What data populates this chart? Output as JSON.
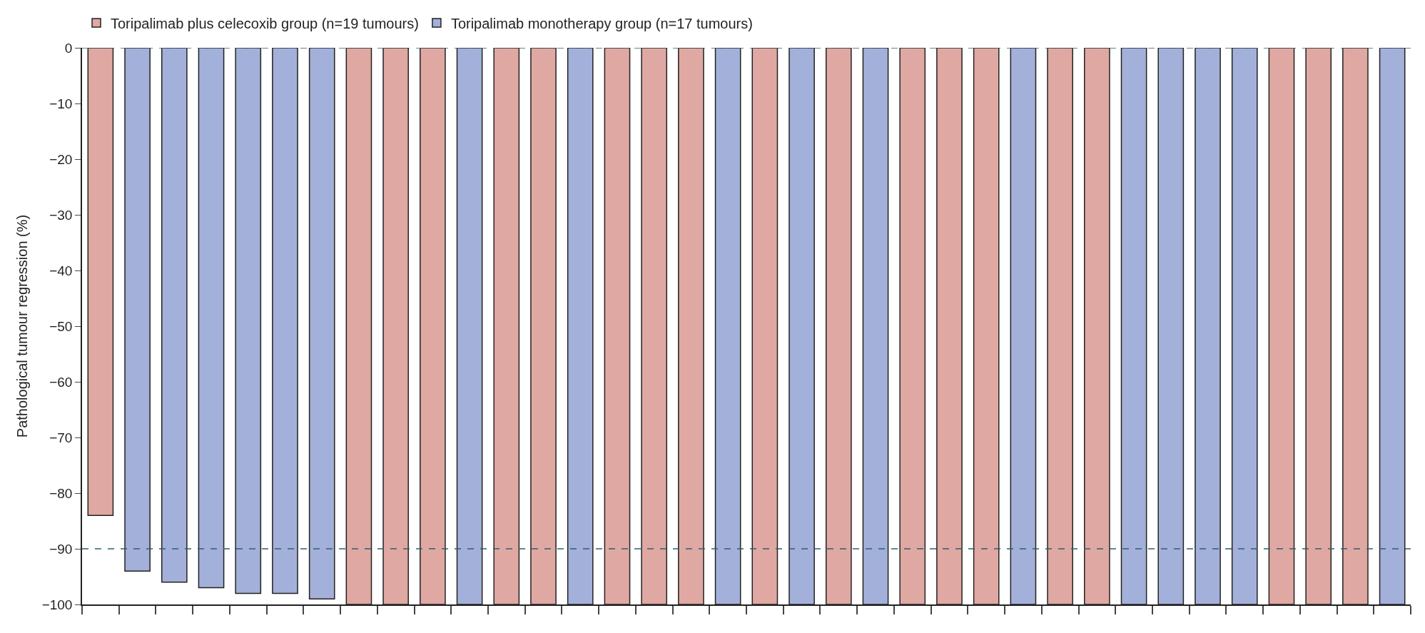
{
  "chart_data": {
    "type": "bar",
    "ylabel": "Pathological tumour regression (%)",
    "categories": [
      null,
      null,
      null,
      null,
      null,
      null,
      null,
      null,
      null,
      null,
      null,
      null,
      null,
      null,
      null,
      null,
      null,
      null,
      null,
      null,
      null,
      null,
      null,
      null,
      null,
      null,
      null,
      null,
      null,
      null,
      null,
      null,
      null,
      null,
      null,
      null
    ],
    "series": [
      {
        "name": "Toripalimab plus celecoxib group (n=19 tumours)",
        "color": "#e0a8a2",
        "values": [
          -84,
          null,
          null,
          null,
          null,
          null,
          null,
          -100,
          -100,
          -100,
          null,
          -100,
          -100,
          null,
          -100,
          -100,
          -100,
          null,
          -100,
          null,
          -100,
          null,
          -100,
          -100,
          -100,
          null,
          -100,
          -100,
          null,
          null,
          null,
          null,
          -100,
          -100,
          -100,
          null
        ]
      },
      {
        "name": "Toripalimab monotherapy group (n=17 tumours)",
        "color": "#a3b0d9",
        "values": [
          null,
          -94,
          -96,
          -97,
          -98,
          -98,
          -99,
          null,
          null,
          null,
          -100,
          null,
          null,
          -100,
          null,
          null,
          null,
          -100,
          null,
          -100,
          null,
          -100,
          null,
          null,
          null,
          -100,
          null,
          null,
          -100,
          -100,
          -100,
          -100,
          null,
          null,
          null,
          -100
        ]
      }
    ],
    "ylim": [
      -100,
      0
    ],
    "yticks": [
      {
        "value": 0,
        "label": "0"
      },
      {
        "value": -10,
        "label": "−10"
      },
      {
        "value": -20,
        "label": "−20"
      },
      {
        "value": -30,
        "label": "−30"
      },
      {
        "value": -40,
        "label": "−40"
      },
      {
        "value": -50,
        "label": "−50"
      },
      {
        "value": -60,
        "label": "−60"
      },
      {
        "value": -70,
        "label": "−70"
      },
      {
        "value": -80,
        "label": "−80"
      },
      {
        "value": -90,
        "label": "−90"
      },
      {
        "value": -100,
        "label": "−100"
      }
    ],
    "ref_lines": [
      {
        "axis": "y",
        "value": 0,
        "label": null,
        "color": "#2f5f6f",
        "line_style": "dashed"
      },
      {
        "axis": "y",
        "value": -90,
        "label": null,
        "color": "#2f5f6f",
        "line_style": "dashed"
      }
    ],
    "legend": "top left",
    "tick_labels": "y"
  }
}
